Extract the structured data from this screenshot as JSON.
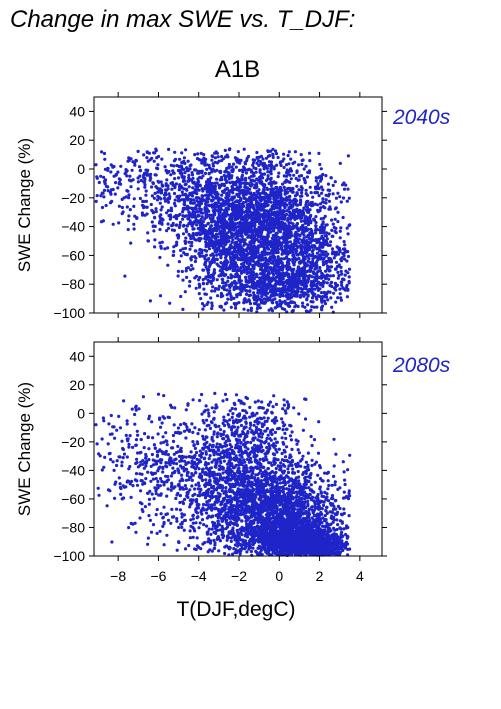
{
  "header": {
    "title": "Change in max SWE vs. T_DJF:",
    "scenario": "A1B"
  },
  "colors": {
    "points": "#1f24c8",
    "axes": "#000000"
  },
  "chart_data": [
    {
      "type": "scatter",
      "panel_label": "2040s",
      "ylabel": "SWE Change (%)",
      "xlabel": "",
      "xlim": [
        -9.2,
        5.1
      ],
      "ylim": [
        -100,
        50
      ],
      "xticks": [
        -8,
        -6,
        -4,
        -2,
        0,
        2,
        4
      ],
      "yticks": [
        -100,
        -80,
        -60,
        -40,
        -20,
        0,
        20,
        40
      ],
      "series": [
        {
          "clusters": [
            {
              "x": [
                -0.5,
                1.6
              ],
              "y": [
                -45,
                28
              ],
              "n": 2100
            },
            {
              "x": [
                -2.5,
                1.2
              ],
              "y": [
                -35,
                22
              ],
              "n": 900
            },
            {
              "x": [
                -4.5,
                1.4
              ],
              "y": [
                -20,
                20
              ],
              "n": 450
            },
            {
              "x": [
                -6.8,
                1.5
              ],
              "y": [
                -12,
                13
              ],
              "n": 160
            },
            {
              "x": [
                -8.6,
                0.5
              ],
              "y": [
                -8,
                9
              ],
              "n": 30
            },
            {
              "x": [
                1.8,
                1.0
              ],
              "y": [
                -60,
                18
              ],
              "n": 320
            },
            {
              "x": [
                0.5,
                1.6
              ],
              "y": [
                -80,
                9
              ],
              "n": 420
            },
            {
              "x": [
                -3.0,
                1.0
              ],
              "y": [
                -78,
                8
              ],
              "n": 80
            }
          ],
          "points": [
            [
              -9.1,
              3
            ],
            [
              -8.5,
              -15
            ],
            [
              -8.2,
              -5
            ],
            [
              -7.8,
              -31
            ],
            [
              -7.5,
              -42
            ],
            [
              -6.5,
              -50
            ],
            [
              -5.9,
              -88
            ],
            [
              -4.2,
              10
            ],
            [
              -3.9,
              -90
            ],
            [
              1.5,
              11
            ],
            [
              3.1,
              -73
            ],
            [
              3.4,
              -72
            ],
            [
              2.6,
              -96
            ],
            [
              -0.4,
              -97
            ],
            [
              -1.9,
              6
            ],
            [
              0.8,
              12
            ]
          ]
        }
      ]
    },
    {
      "type": "scatter",
      "panel_label": "2080s",
      "ylabel": "SWE Change (%)",
      "xlabel": "T(DJF,degC)",
      "xlim": [
        -9.2,
        5.1
      ],
      "ylim": [
        -100,
        50
      ],
      "xticks": [
        -8,
        -6,
        -4,
        -2,
        0,
        2,
        4
      ],
      "yticks": [
        -100,
        -80,
        -60,
        -40,
        -20,
        0,
        20,
        40
      ],
      "series": [
        {
          "clusters": [
            {
              "x": [
                0.0,
                1.4
              ],
              "y": [
                -72,
                20
              ],
              "n": 2000
            },
            {
              "x": [
                1.0,
                1.0
              ],
              "y": [
                -90,
                8
              ],
              "n": 900
            },
            {
              "x": [
                -2.2,
                1.3
              ],
              "y": [
                -50,
                25
              ],
              "n": 900
            },
            {
              "x": [
                -4.8,
                1.5
              ],
              "y": [
                -45,
                22
              ],
              "n": 380
            },
            {
              "x": [
                -7.0,
                1.3
              ],
              "y": [
                -30,
                18
              ],
              "n": 160
            },
            {
              "x": [
                -1.2,
                1.0
              ],
              "y": [
                -10,
                10
              ],
              "n": 200
            },
            {
              "x": [
                2.2,
                0.8
              ],
              "y": [
                -93,
                5
              ],
              "n": 300
            }
          ],
          "points": [
            [
              -9.1,
              -8
            ],
            [
              -8.8,
              -18
            ],
            [
              -8.4,
              -28
            ],
            [
              -8.2,
              -40
            ],
            [
              -7.8,
              -60
            ],
            [
              -7.3,
              3
            ],
            [
              -5.0,
              -90
            ],
            [
              -3.2,
              14
            ],
            [
              -2.0,
              9
            ],
            [
              0.4,
              8
            ],
            [
              3.2,
              -81
            ],
            [
              3.4,
              -80
            ],
            [
              2.9,
              -97
            ],
            [
              -6.2,
              -22
            ],
            [
              -5.5,
              -75
            ],
            [
              -4.0,
              -94
            ],
            [
              1.3,
              -4
            ]
          ]
        }
      ]
    }
  ]
}
